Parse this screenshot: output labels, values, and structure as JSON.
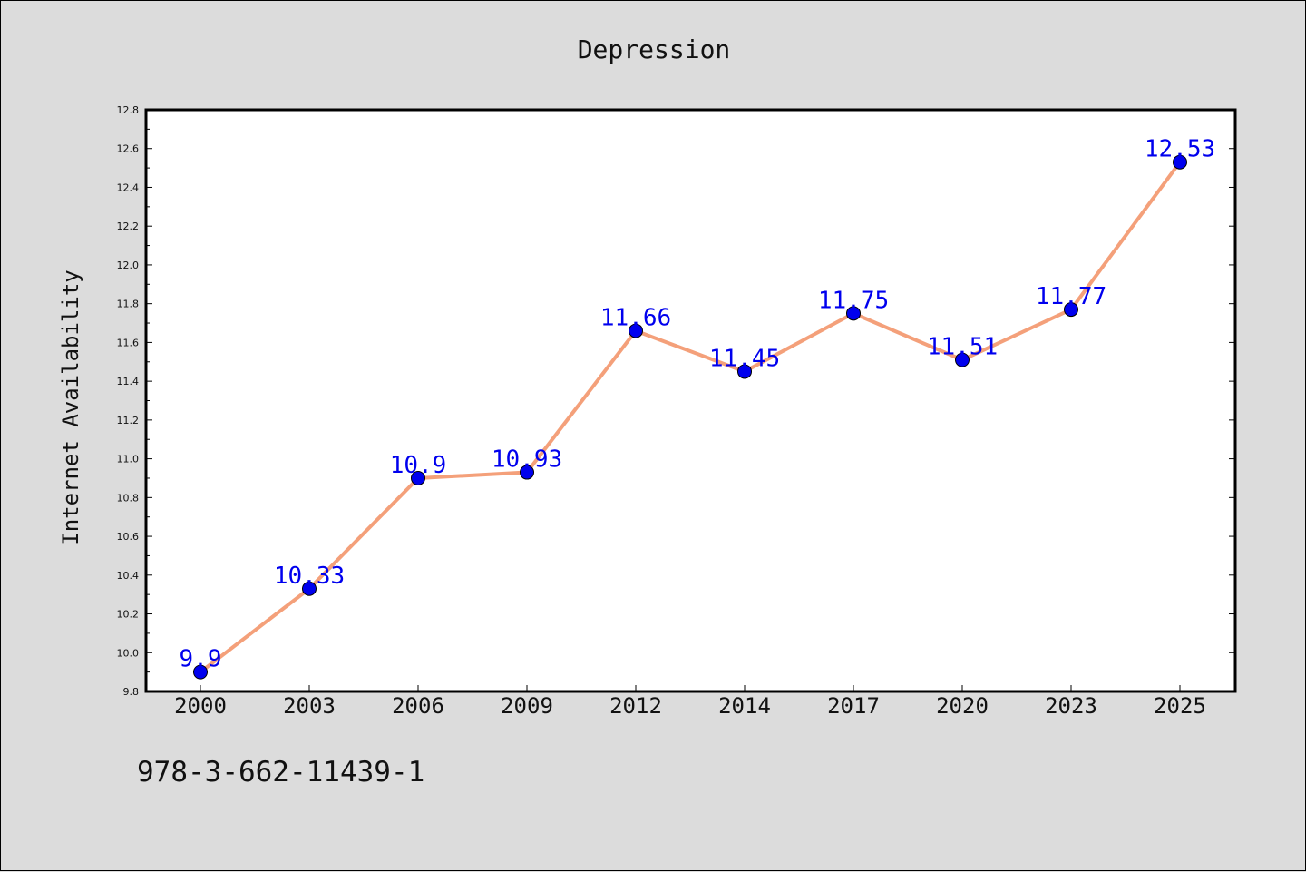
{
  "chart_data": {
    "type": "line",
    "title": "Depression",
    "xlabel": "",
    "ylabel": "Internet Availability",
    "categories": [
      "2000",
      "2003",
      "2006",
      "2009",
      "2012",
      "2014",
      "2017",
      "2020",
      "2023",
      "2025"
    ],
    "series": [
      {
        "values": [
          9.9,
          10.33,
          10.9,
          10.93,
          11.66,
          11.45,
          11.75,
          11.51,
          11.77,
          12.53
        ],
        "labels": [
          "9.9",
          "10.33",
          "10.9",
          "10.93",
          "11.66",
          "11.45",
          "11.75",
          "11.51",
          "11.77",
          "12.53"
        ]
      }
    ],
    "ylim": [
      9.8,
      12.8
    ],
    "yticks": [
      "9.8",
      "10.0",
      "10.2",
      "10.4",
      "10.6",
      "10.8",
      "11.0",
      "11.2",
      "11.4",
      "11.6",
      "11.8",
      "12.0",
      "12.2",
      "12.4",
      "12.6",
      "12.8"
    ],
    "grid": false,
    "colors": {
      "line": "#f4a07a",
      "marker": "#0000ee",
      "label": "#0000ee",
      "background": "#dcdcdc",
      "plot_background": "#ffffff"
    }
  },
  "footer": {
    "code": "978-3-662-11439-1"
  }
}
